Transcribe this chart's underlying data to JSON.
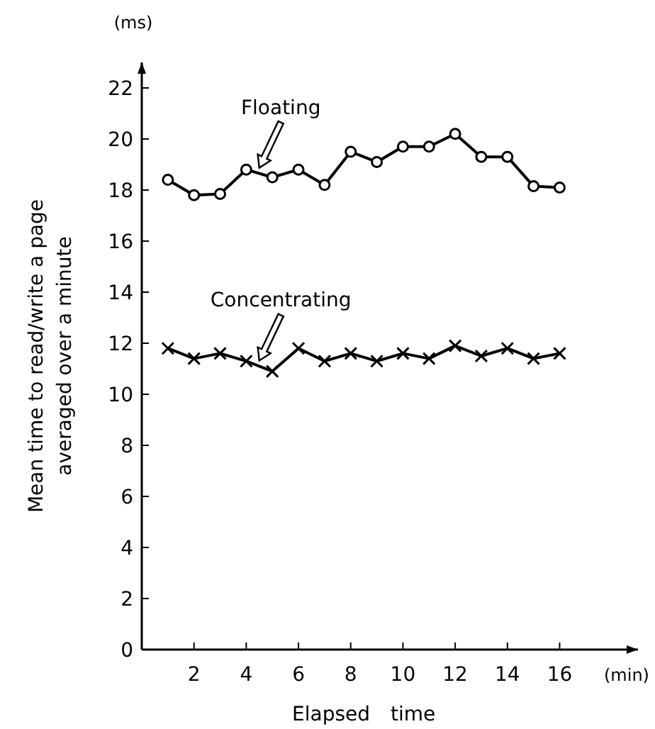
{
  "chart_data": {
    "type": "line",
    "xlabel": "Elapsed time",
    "ylabel": "Mean time to read/write a page\naveraged over a minute",
    "annotations": [
      "(ms)",
      "(min)"
    ],
    "x": [
      1,
      2,
      3,
      4,
      5,
      6,
      7,
      8,
      9,
      10,
      11,
      12,
      13,
      14,
      15,
      16
    ],
    "series": [
      {
        "name": "Floating",
        "color": "#000000",
        "marker": "circle",
        "values": [
          18.4,
          17.8,
          17.85,
          18.8,
          18.5,
          18.8,
          18.2,
          19.5,
          19.1,
          19.7,
          19.7,
          20.2,
          19.3,
          19.3,
          18.15,
          18.1
        ]
      },
      {
        "name": "Concentrating",
        "color": "#000000",
        "marker": "cross",
        "values": [
          11.8,
          11.4,
          11.6,
          11.3,
          10.9,
          11.8,
          11.3,
          11.6,
          11.3,
          11.6,
          11.4,
          11.9,
          11.5,
          11.8,
          11.4,
          11.6
        ]
      }
    ],
    "xlim": [
      0,
      19
    ],
    "ylim": [
      0,
      23
    ],
    "xticks": [
      2,
      4,
      6,
      8,
      10,
      12,
      14,
      16
    ],
    "yticks": [
      0,
      2,
      4,
      6,
      8,
      10,
      12,
      14,
      16,
      18,
      20,
      22
    ],
    "grid": false,
    "line_style": "solid"
  }
}
